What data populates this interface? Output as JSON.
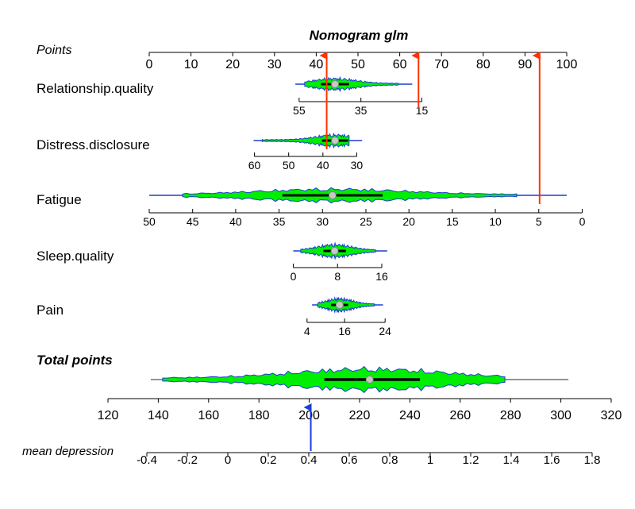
{
  "chart_data": {
    "type": "nomogram",
    "title": "Nomogram glm",
    "scales": {
      "points": {
        "label": "Points",
        "ticks": [
          0,
          10,
          20,
          30,
          40,
          50,
          60,
          70,
          80,
          90,
          100
        ],
        "range": [
          0,
          100
        ]
      },
      "total_points": {
        "label": "Total points",
        "ticks": [
          120,
          140,
          160,
          180,
          200,
          220,
          240,
          260,
          280,
          300,
          320
        ],
        "range": [
          120,
          320
        ]
      },
      "outcome": {
        "label": "mean depression",
        "ticks": [
          -0.4,
          -0.2,
          0,
          0.2,
          0.4,
          0.6,
          0.8,
          1,
          1.2,
          1.4,
          1.6,
          1.8
        ],
        "tick_labels": [
          "-0.4",
          "-0.2",
          "0",
          "0.2",
          "0.4",
          "0.6",
          "0.8",
          "1",
          "1.2",
          "1.4",
          "1.6",
          "1.8"
        ],
        "range": [
          -0.4,
          1.8
        ]
      }
    },
    "variables": [
      {
        "name": "Relationship.quality",
        "ticks": [
          55,
          35,
          15
        ],
        "point_positions": [
          35.9,
          50.7,
          65.3
        ],
        "observed_range_points": [
          35,
          63
        ],
        "median_points": 44.5
      },
      {
        "name": "Distress.disclosure",
        "ticks": [
          60,
          50,
          40,
          30
        ],
        "point_positions": [
          25.2,
          33.4,
          41.6,
          49.7
        ],
        "observed_range_points": [
          25,
          51
        ],
        "median_points": 44.5
      },
      {
        "name": "Fatigue",
        "ticks": [
          50,
          45,
          40,
          35,
          30,
          25,
          20,
          15,
          10,
          5,
          0
        ],
        "point_positions": [
          0,
          10.4,
          20.7,
          31.1,
          41.5,
          51.9,
          62.2,
          72.6,
          82.9,
          93.3,
          103.7
        ],
        "observed_range_points": [
          0,
          100
        ],
        "median_points": 43.9
      },
      {
        "name": "Sleep.quality",
        "ticks": [
          0,
          8,
          16
        ],
        "point_positions": [
          34.5,
          45.1,
          55.7
        ],
        "observed_range_points": [
          34.5,
          57
        ],
        "median_points": 44.4
      },
      {
        "name": "Pain",
        "ticks": [
          4,
          16,
          24
        ],
        "point_positions": [
          37.8,
          46.8,
          56.5
        ],
        "observed_range_points": [
          39,
          56
        ],
        "median_points": 45.6
      }
    ],
    "total_points_distribution": {
      "observed_range": [
        137,
        303
      ],
      "median": 224,
      "iqr": [
        206,
        244
      ]
    },
    "selected_observation": {
      "red_arrows_points": [
        42.5,
        64.5,
        93.5
      ],
      "blue_arrow_outcome": 0.41
    },
    "legend": "none",
    "grid": false
  }
}
